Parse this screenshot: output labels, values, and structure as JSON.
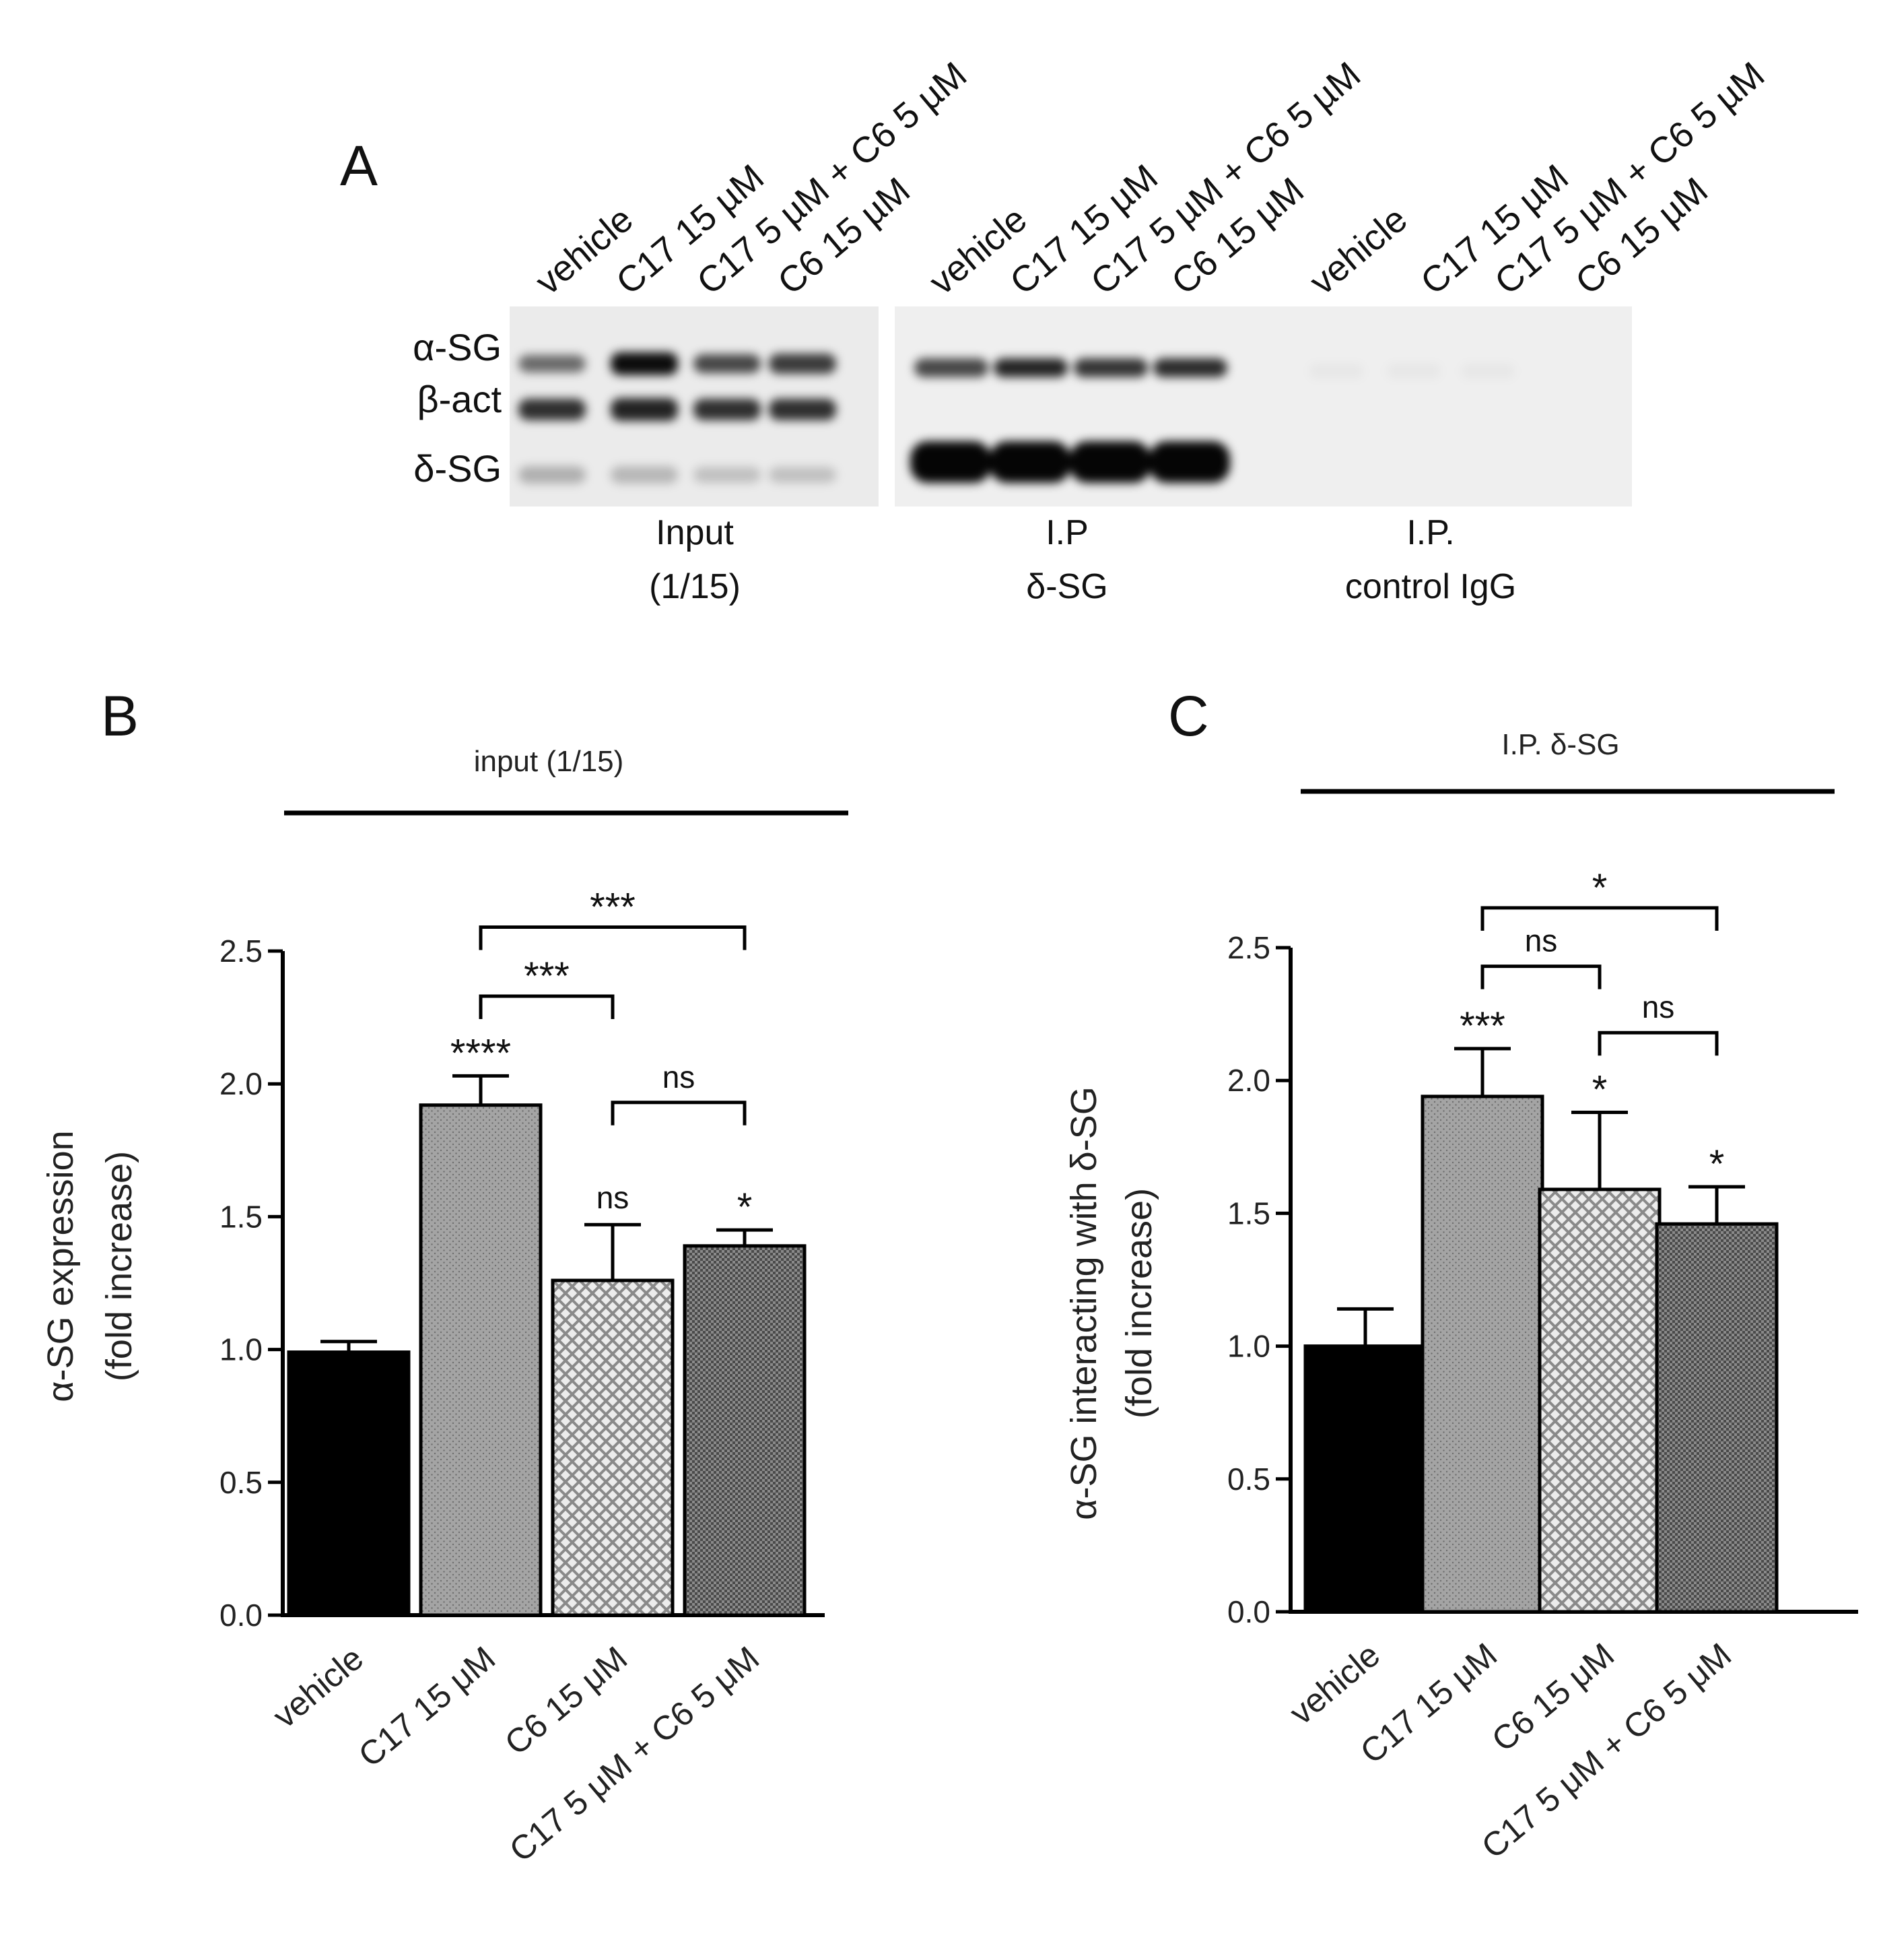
{
  "panel_a": {
    "letter": "A",
    "lanes": [
      "vehicle",
      "C17 15 µM",
      "C17 5 µM + C6 5 µM",
      "C6 15 µM",
      "vehicle",
      "C17 15 µM",
      "C17 5 µM + C6 5 µM",
      "C6 15 µM",
      "vehicle",
      "C17 15 µM",
      "C17 5 µM + C6 5 µM",
      "C6 15 µM"
    ],
    "band_labels": [
      "α-SG",
      "β-act",
      "δ-SG"
    ],
    "groups": [
      {
        "line1": "Input",
        "line2": "(1/15)"
      },
      {
        "line1": "I.P",
        "line2": "δ-SG"
      },
      {
        "line1": "I.P.",
        "line2": "control IgG"
      }
    ]
  },
  "chart_data": [
    {
      "type": "bar",
      "panel": "B",
      "subtitle": "input (1/15)",
      "ylabel_line1": "α-SG expression",
      "ylabel_line2": "(fold increase)",
      "categories": [
        "vehicle",
        "C17 15 μM",
        "C6 15 μM",
        "C17 5 μM + C6 5 μM"
      ],
      "values": [
        0.99,
        1.92,
        1.26,
        1.39
      ],
      "errors": [
        0.04,
        0.11,
        0.21,
        0.06
      ],
      "significance_vs_vehicle": [
        "",
        "****",
        "ns",
        "*"
      ],
      "yticks": [
        "0.0",
        "0.5",
        "1.0",
        "1.5",
        "2.0",
        "2.5"
      ],
      "ylim": [
        0,
        2.5
      ],
      "comparisons": [
        {
          "from": 1,
          "to": 3,
          "label": "***",
          "y": 2.59
        },
        {
          "from": 1,
          "to": 2,
          "label": "***",
          "y": 2.33
        },
        {
          "from": 2,
          "to": 3,
          "label": "ns",
          "y": 1.93
        }
      ],
      "fill_patterns": [
        "solid-black",
        "fine-dots-gray",
        "light-crosshatch",
        "dark-crosshatch"
      ]
    },
    {
      "type": "bar",
      "panel": "C",
      "subtitle": "I.P. δ-SG",
      "ylabel_line1": "α-SG interacting with δ-SG",
      "ylabel_line2": "(fold increase)",
      "categories": [
        "vehicle",
        "C17 15 μM",
        "C6 15 μM",
        "C17 5 μM + C6 5 μM"
      ],
      "values": [
        1.0,
        1.94,
        1.59,
        1.46
      ],
      "errors": [
        0.14,
        0.18,
        0.29,
        0.14
      ],
      "significance_vs_vehicle": [
        "",
        "***",
        "*",
        "*"
      ],
      "yticks": [
        "0.0",
        "0.5",
        "1.0",
        "1.5",
        "2.0",
        "2.5"
      ],
      "ylim": [
        0,
        2.5
      ],
      "comparisons": [
        {
          "from": 1,
          "to": 3,
          "label": "*",
          "y": 2.65
        },
        {
          "from": 1,
          "to": 2,
          "label": "ns",
          "y": 2.43
        },
        {
          "from": 2,
          "to": 3,
          "label": "ns",
          "y": 2.18
        }
      ],
      "fill_patterns": [
        "solid-black",
        "fine-dots-gray",
        "light-crosshatch",
        "dark-crosshatch"
      ]
    }
  ]
}
